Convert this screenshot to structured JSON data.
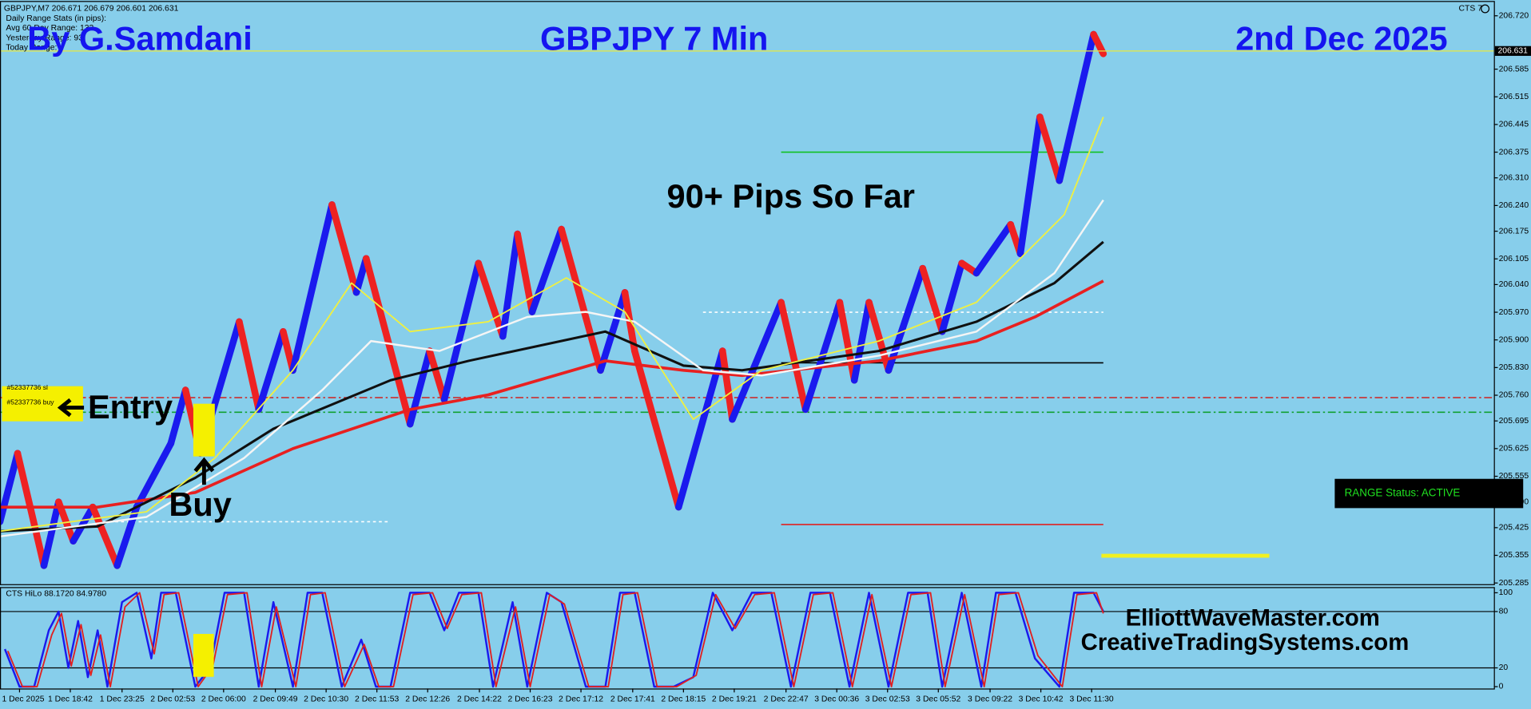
{
  "header": {
    "symbol_line": "GBPJPY,M7  206.671 206.679 206.601 206.631",
    "stats": [
      "Daily Range Stats (in pips):",
      "Avg 60 Day Range: 133",
      "Yesterday Range: 93",
      "Today Range:"
    ],
    "platform": "CTS 7"
  },
  "annotations": {
    "author": "By G.Samdani",
    "date": "2nd Dec 2025",
    "pips": "90+ Pips So Far",
    "entry": "Entry",
    "buy": "Buy",
    "site1": "ElliottWaveMaster.com",
    "site2": "CreativeTradingSystems.com",
    "status": "RANGE Status: ACTIVE"
  },
  "chart_data": [
    {
      "type": "line",
      "title": "GBPJPY 7 Min",
      "xlim": [
        0,
        1530
      ],
      "ylim": [
        205.282,
        206.755
      ],
      "yticks": [
        {
          "value": 206.72,
          "label": "206.720"
        },
        206.585,
        206.515,
        206.445,
        206.375,
        {
          "value": 206.31,
          "label": "206.310"
        },
        {
          "value": 206.24,
          "label": "206.240"
        },
        206.175,
        206.105,
        {
          "value": 206.04,
          "label": "206.040"
        },
        {
          "value": 205.97,
          "label": "205.970"
        },
        {
          "value": 205.9,
          "label": "205.900"
        },
        {
          "value": 205.83,
          "label": "205.830"
        },
        {
          "value": 205.76,
          "label": "205.760"
        },
        205.695,
        205.625,
        205.555,
        {
          "value": 205.49,
          "label": "205.490"
        },
        205.425,
        205.355,
        205.285
      ],
      "last_price": 206.631,
      "last_price_color": "#e8e840",
      "series": [
        {
          "style": "zigzag",
          "up_color": "#1a1aee",
          "down_color": "#ee2222",
          "x": [
            0,
            18,
            45,
            60,
            75,
            95,
            120,
            140,
            175,
            190,
            205,
            245,
            265,
            290,
            300,
            340,
            365,
            375,
            420,
            440,
            455,
            490,
            515,
            530,
            545,
            575,
            615,
            640,
            650,
            695,
            740,
            750,
            800,
            825,
            860,
            875,
            890,
            910,
            945,
            965,
            985,
            1000,
            1035,
            1045,
            1065,
            1085,
            1120,
            1130
          ],
          "values": [
            205.44,
            205.613,
            205.329,
            205.49,
            205.391,
            205.477,
            205.329,
            205.477,
            205.638,
            205.773,
            205.613,
            205.946,
            205.724,
            205.921,
            205.823,
            206.242,
            206.02,
            206.106,
            205.687,
            205.872,
            205.749,
            206.094,
            205.909,
            206.168,
            205.971,
            206.18,
            205.823,
            206.02,
            205.872,
            205.477,
            205.872,
            205.699,
            205.995,
            205.724,
            205.995,
            205.798,
            205.995,
            205.823,
            206.081,
            205.921,
            206.094,
            206.069,
            206.192,
            206.118,
            206.464,
            206.303,
            206.673,
            206.624
          ]
        },
        {
          "style": "smooth",
          "color": "#e82020",
          "width": 3,
          "x": [
            0,
            100,
            200,
            300,
            420,
            500,
            620,
            700,
            760,
            900,
            1000,
            1060,
            1130
          ],
          "values": [
            205.477,
            205.477,
            205.514,
            205.625,
            205.724,
            205.761,
            205.847,
            205.823,
            205.81,
            205.847,
            205.897,
            205.958,
            206.049
          ]
        },
        {
          "style": "smooth",
          "color": "#101010",
          "width": 2.5,
          "x": [
            0,
            100,
            200,
            280,
            400,
            480,
            620,
            700,
            760,
            900,
            1000,
            1080,
            1130
          ],
          "values": [
            205.416,
            205.428,
            205.551,
            205.675,
            205.798,
            205.847,
            205.921,
            205.835,
            205.823,
            205.872,
            205.946,
            206.044,
            206.148
          ]
        },
        {
          "style": "smooth",
          "color": "#f5f5f5",
          "width": 2,
          "x": [
            0,
            150,
            250,
            330,
            380,
            450,
            540,
            600,
            650,
            720,
            780,
            900,
            1000,
            1080,
            1130
          ],
          "values": [
            205.403,
            205.452,
            205.601,
            205.773,
            205.897,
            205.872,
            205.958,
            205.971,
            205.946,
            205.823,
            205.81,
            205.86,
            205.921,
            206.069,
            206.254
          ]
        },
        {
          "style": "smooth",
          "color": "#f0f040",
          "width": 1.5,
          "x": [
            0,
            150,
            220,
            300,
            360,
            420,
            500,
            580,
            640,
            710,
            780,
            900,
            1000,
            1090,
            1130
          ],
          "values": [
            205.416,
            205.465,
            205.601,
            205.823,
            206.044,
            205.921,
            205.946,
            206.057,
            205.971,
            205.699,
            205.823,
            205.897,
            205.995,
            206.217,
            206.464
          ]
        }
      ],
      "levels": [
        {
          "value": 206.375,
          "color": "#10c020",
          "from": 800,
          "to": 1130
        },
        {
          "value": 205.842,
          "color": "#000000",
          "from": 800,
          "to": 1130
        },
        {
          "value": 205.433,
          "color": "#e02020",
          "from": 800,
          "to": 1130
        },
        {
          "value": 205.97,
          "color": "#ffffff",
          "from": 720,
          "to": 1130,
          "dash": "3 3"
        },
        {
          "value": 205.44,
          "color": "#ffffff",
          "from": 100,
          "to": 400,
          "dash": "3 3"
        },
        {
          "value": 205.754,
          "color": "#d02020",
          "from": 0,
          "to": 1530,
          "dash": "8 3 2 3",
          "label": "#52337736 sl"
        },
        {
          "value": 205.717,
          "color": "#10a030",
          "from": 0,
          "to": 1530,
          "dash": "8 3 2 3",
          "label": "#52337736 buy"
        },
        {
          "value": 205.354,
          "color": "#f0f020",
          "from": 1128,
          "to": 1300,
          "width": 4
        }
      ]
    },
    {
      "type": "line",
      "title": "CTS HiLo 88.1720 84.9780",
      "xlim": [
        0,
        1530
      ],
      "ylim": [
        -2,
        105
      ],
      "yticks": [
        0,
        20,
        80,
        100
      ],
      "guides": [
        20,
        80
      ],
      "xticks": [
        {
          "value": 20,
          "label": "1 Dec 2025"
        },
        {
          "value": 72,
          "label": "1 Dec 18:42"
        },
        {
          "value": 125,
          "label": "1 Dec 23:25"
        },
        {
          "value": 177,
          "label": "2 Dec 02:53"
        },
        {
          "value": 229,
          "label": "2 Dec 06:00"
        },
        {
          "value": 282,
          "label": "2 Dec 09:49"
        },
        {
          "value": 334,
          "label": "2 Dec 10:30"
        },
        {
          "value": 386,
          "label": "2 Dec 11:53"
        },
        {
          "value": 438,
          "label": "2 Dec 12:26"
        },
        {
          "value": 491,
          "label": "2 Dec 14:22"
        },
        {
          "value": 543,
          "label": "2 Dec 16:23"
        },
        {
          "value": 595,
          "label": "2 Dec 17:12"
        },
        {
          "value": 648,
          "label": "2 Dec 17:41"
        },
        {
          "value": 700,
          "label": "2 Dec 18:15"
        },
        {
          "value": 752,
          "label": "2 Dec 19:21"
        },
        {
          "value": 805,
          "label": "2 Dec 22:47"
        },
        {
          "value": 857,
          "label": "3 Dec 00:36"
        },
        {
          "value": 909,
          "label": "3 Dec 02:53"
        },
        {
          "value": 961,
          "label": "3 Dec 05:52"
        },
        {
          "value": 1014,
          "label": "3 Dec 09:22"
        },
        {
          "value": 1066,
          "label": "3 Dec 10:42"
        },
        {
          "value": 1118,
          "label": "3 Dec 11:30"
        }
      ],
      "series": [
        {
          "style": "smooth",
          "color": "#1a1aee",
          "width": 2,
          "x": [
            5,
            20,
            35,
            50,
            60,
            70,
            80,
            90,
            100,
            110,
            125,
            140,
            155,
            165,
            180,
            200,
            215,
            230,
            250,
            265,
            280,
            300,
            315,
            330,
            350,
            370,
            385,
            400,
            420,
            440,
            455,
            470,
            490,
            505,
            525,
            540,
            560,
            575,
            600,
            620,
            635,
            650,
            670,
            690,
            710,
            730,
            750,
            770,
            790,
            810,
            830,
            850,
            870,
            890,
            910,
            930,
            950,
            965,
            985,
            1005,
            1020,
            1040,
            1060,
            1085,
            1100,
            1120,
            1130
          ],
          "values": [
            40,
            0,
            0,
            60,
            80,
            20,
            70,
            10,
            60,
            0,
            90,
            100,
            30,
            100,
            100,
            0,
            20,
            100,
            100,
            0,
            90,
            0,
            100,
            100,
            0,
            50,
            0,
            0,
            100,
            100,
            60,
            100,
            100,
            0,
            90,
            0,
            100,
            90,
            0,
            0,
            100,
            100,
            0,
            0,
            10,
            100,
            60,
            100,
            100,
            0,
            100,
            100,
            0,
            100,
            0,
            100,
            100,
            0,
            100,
            0,
            100,
            100,
            30,
            0,
            100,
            100,
            80
          ]
        },
        {
          "style": "smooth",
          "color": "#e02020",
          "width": 1.5,
          "x": [
            8,
            23,
            38,
            53,
            63,
            73,
            83,
            93,
            103,
            113,
            128,
            143,
            158,
            168,
            183,
            203,
            218,
            233,
            253,
            268,
            283,
            303,
            318,
            333,
            353,
            373,
            388,
            403,
            423,
            443,
            458,
            473,
            493,
            508,
            528,
            543,
            563,
            578,
            603,
            623,
            638,
            653,
            673,
            693,
            713,
            733,
            753,
            773,
            793,
            813,
            833,
            853,
            873,
            893,
            913,
            933,
            953,
            968,
            988,
            1008,
            1023,
            1043,
            1063,
            1088,
            1103,
            1123,
            1130
          ],
          "values": [
            38,
            0,
            0,
            55,
            78,
            22,
            66,
            12,
            55,
            0,
            85,
            100,
            35,
            98,
            100,
            0,
            22,
            98,
            100,
            0,
            85,
            0,
            98,
            100,
            0,
            45,
            0,
            0,
            98,
            100,
            62,
            98,
            100,
            0,
            85,
            0,
            98,
            88,
            0,
            0,
            98,
            100,
            0,
            0,
            12,
            98,
            62,
            98,
            100,
            0,
            98,
            100,
            0,
            98,
            0,
            98,
            100,
            0,
            98,
            0,
            98,
            100,
            33,
            0,
            98,
            100,
            78
          ]
        }
      ]
    }
  ]
}
